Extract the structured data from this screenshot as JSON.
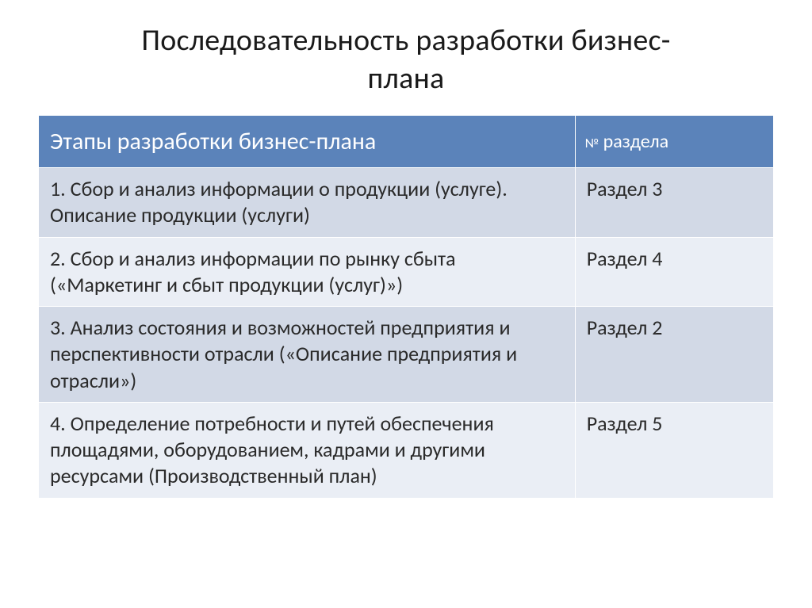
{
  "title_line1": "Последовательность разработки бизнес-",
  "title_line2": "плана",
  "table": {
    "header": {
      "stage": "Этапы разработки бизнес-плана",
      "section_num_sign": "№",
      "section_word": "раздела"
    },
    "rows": [
      {
        "stage": "1. Сбор и анализ информации о продукции (услуге). Описание продукции (услуги)",
        "section": "Раздел 3"
      },
      {
        "stage": "2. Сбор и анализ информации по рынку сбыта («Маркетинг и сбыт продукции (услуг)»)",
        "section": "Раздел 4"
      },
      {
        "stage": "3. Анализ  состояния и возможностей предприятия и перспективности отрасли («Описание предприятия и отрасли»)",
        "section": "Раздел 2"
      },
      {
        "stage": "4. Определение  потребности и путей обеспечения площадями, оборудованием, кадрами и другими ресурсами (Производственный план)",
        "section": "Раздел 5"
      }
    ]
  },
  "styling": {
    "type": "table",
    "columns": [
      "stage",
      "section"
    ],
    "column_widths_pct": [
      73,
      27
    ],
    "header_bg": "#5b83ba",
    "header_fg": "#ffffff",
    "row_odd_bg": "#d2d9e6",
    "row_even_bg": "#eaeef5",
    "cell_border_color": "#ffffff",
    "title_fontsize": 38,
    "header_stage_fontsize": 30,
    "header_section_fontsize": 24,
    "body_fontsize": 26,
    "title_color": "#1a1a1a",
    "body_color": "#2a2a2a",
    "background_color": "#ffffff",
    "font_family": "Calibri"
  }
}
